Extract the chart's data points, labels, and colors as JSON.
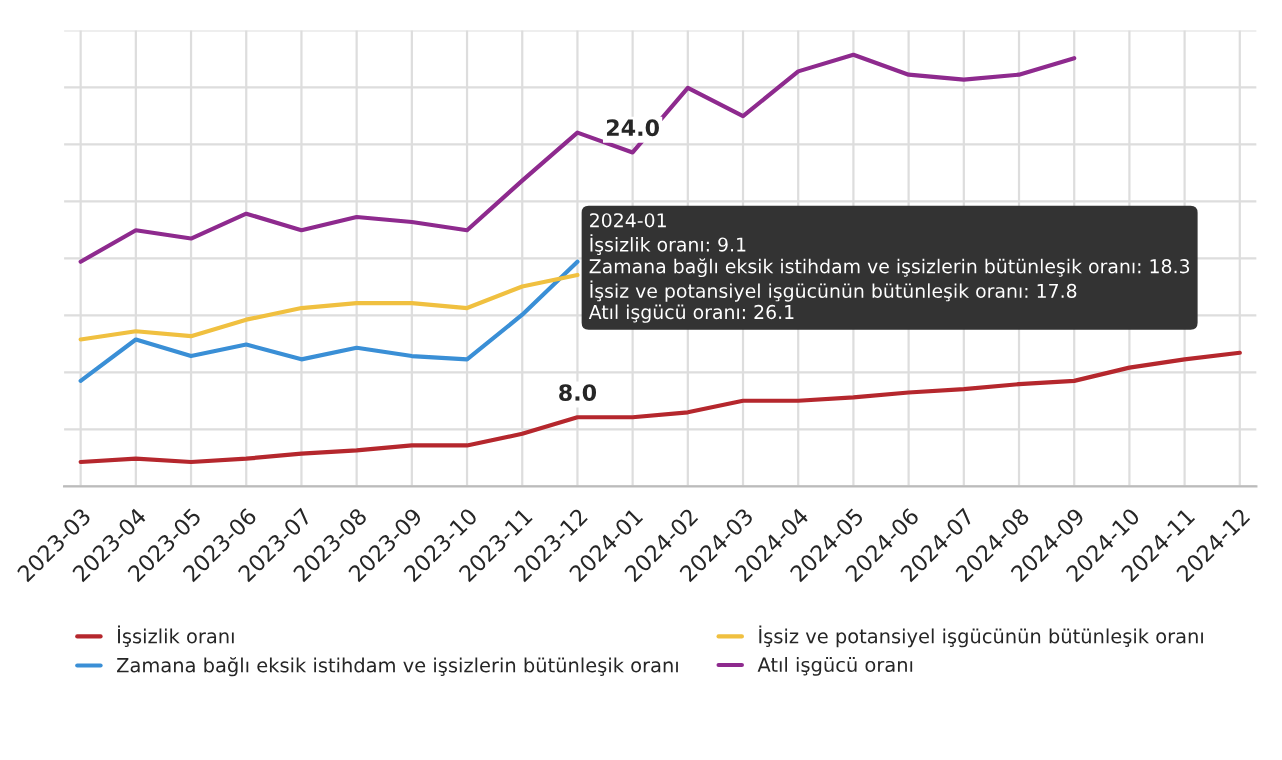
{
  "chart_data": {
    "type": "line",
    "grid": true,
    "tick_labels": "x",
    "legend": "bottom",
    "marker": "none",
    "line_style": "solid",
    "categories": [
      "2023-03",
      "2023-04",
      "2023-05",
      "2023-06",
      "2023-07",
      "2023-08",
      "2023-09",
      "2023-10",
      "2023-11",
      "2023-12",
      "2024-01",
      "2024-02",
      "2024-03",
      "2024-04",
      "2024-05",
      "2024-06",
      "2024-07",
      "2024-08",
      "2024-09",
      "2024-10",
      "2024-11",
      "2024-12"
    ],
    "series": [
      {
        "name": "İşsizlik oranı",
        "color": "#b5272d",
        "values": [
          5.3,
          5.5,
          5.3,
          5.5,
          5.8,
          6.0,
          6.3,
          6.3,
          7.0,
          8.0,
          8.0,
          8.3,
          9.0,
          9.0,
          9.2,
          9.5,
          9.7,
          10.0,
          10.2,
          11.0,
          11.5,
          11.9
        ],
        "value_labels": [
          null,
          null,
          null,
          null,
          null,
          null,
          null,
          null,
          null,
          "8.0",
          null,
          null,
          null,
          null,
          null,
          null,
          null,
          null,
          null,
          null,
          null,
          null
        ]
      },
      {
        "name": "Zamana bağlı eksik istihdam ve işsizlerin bütünleşik oranı",
        "color": "#3a8fd6",
        "values": [
          10.2,
          12.7,
          11.7,
          12.4,
          11.5,
          12.2,
          11.7,
          11.5,
          14.2,
          17.4,
          null,
          null,
          null,
          null,
          null,
          null,
          null,
          null,
          null,
          null,
          null,
          null
        ]
      },
      {
        "name": "İşsiz ve potansiyel işgücünün bütünleşik oranı",
        "color": "#f0c040",
        "values": [
          12.7,
          13.2,
          12.9,
          13.9,
          14.6,
          14.9,
          14.9,
          14.6,
          15.9,
          16.6,
          null,
          null,
          null,
          null,
          null,
          null,
          null,
          null,
          null,
          null,
          null,
          null
        ]
      },
      {
        "name": "Atıl işgücü oranı",
        "color": "#8e2a8e",
        "values": [
          17.4,
          19.3,
          18.8,
          20.3,
          19.3,
          20.1,
          19.8,
          19.3,
          22.3,
          25.2,
          24.0,
          27.9,
          26.2,
          28.9,
          29.9,
          28.7,
          28.4,
          28.7,
          29.7,
          null,
          null,
          null
        ],
        "value_labels": [
          null,
          null,
          null,
          null,
          null,
          null,
          null,
          null,
          null,
          null,
          "24.0",
          null,
          null,
          null,
          null,
          null,
          null,
          null,
          null,
          null,
          null,
          null
        ]
      }
    ],
    "annotations": [
      "2024-01",
      "İşsizlik oranı: 9.1",
      "Zamana bağlı eksik istihdam ve işsizlerin bütünleşik oranı: 18.3",
      "İşsiz ve potansiyel işgücünün bütünleşik oranı: 17.8",
      "Atıl işgücü oranı: 26.1"
    ]
  }
}
